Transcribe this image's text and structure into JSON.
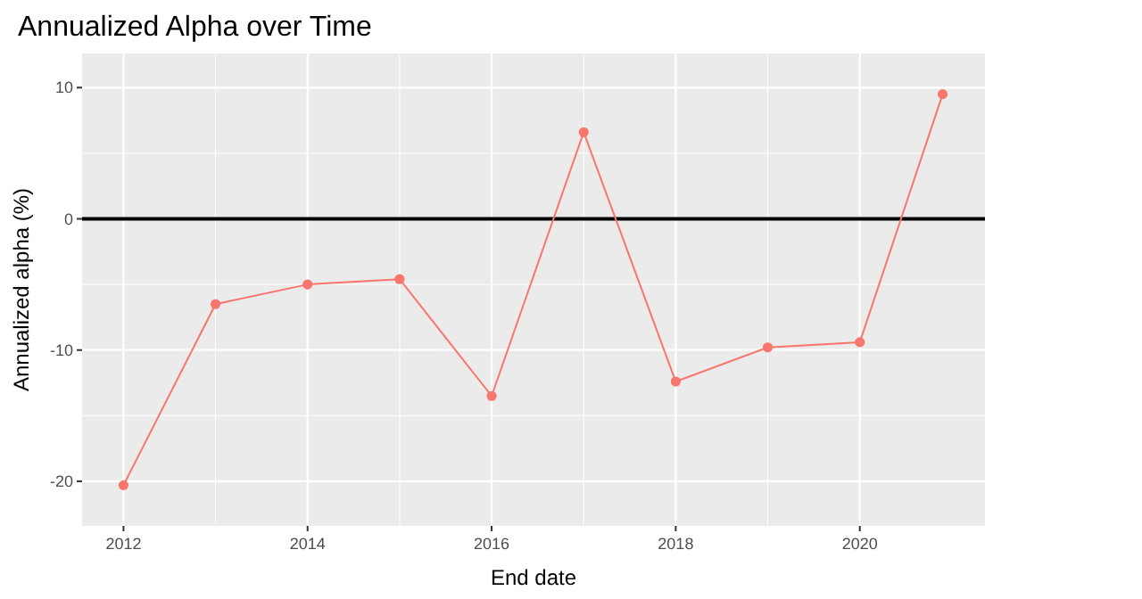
{
  "chart_data": {
    "type": "line",
    "title": "Annualized Alpha over Time",
    "xlabel": "End date",
    "ylabel": "Annualized alpha (%)",
    "x": [
      2012,
      2013,
      2014,
      2015,
      2016,
      2017,
      2018,
      2019,
      2020,
      2020.9
    ],
    "series": [
      {
        "color": "#f8766d",
        "values": [
          -20.3,
          -6.5,
          -5.0,
          -4.6,
          -13.5,
          6.6,
          -12.4,
          -9.8,
          -9.4,
          9.5
        ]
      }
    ],
    "xlim": [
      2011.55,
      2021.36
    ],
    "xticks": [
      2012,
      2014,
      2016,
      2018,
      2020
    ],
    "ylim": [
      -23.4,
      12.6
    ],
    "yticks": [
      -20,
      -10,
      0,
      10
    ],
    "ref_lines": [
      {
        "axis": "y",
        "value": 0,
        "color": "#000000"
      }
    ],
    "grid": true,
    "marker": "circle",
    "line_style": "solid"
  }
}
